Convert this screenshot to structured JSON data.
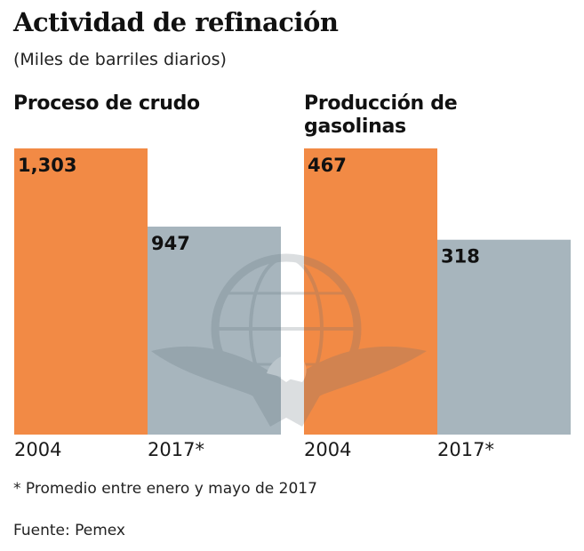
{
  "header": {
    "title": "Actividad de refinación",
    "subtitle": "(Miles de barriles diarios)"
  },
  "colors": {
    "orange": "#f28a45",
    "grey": "#a7b5bd",
    "watermark": "#7b8a92"
  },
  "chart_data": [
    {
      "type": "bar",
      "title": "Proceso de crudo",
      "categories": [
        "2004",
        "2017*"
      ],
      "values": [
        1303,
        947
      ],
      "value_labels": [
        "1,303",
        "947"
      ],
      "xlabel": "",
      "ylabel": "Miles de barriles diarios",
      "ylim": [
        0,
        1303
      ],
      "grid": false,
      "legend": "none"
    },
    {
      "type": "bar",
      "title": "Producción de gasolinas",
      "categories": [
        "2004",
        "2017*"
      ],
      "values": [
        467,
        318
      ],
      "value_labels": [
        "467",
        "318"
      ],
      "xlabel": "",
      "ylabel": "Miles de barriles diarios",
      "ylim": [
        0,
        467
      ],
      "grid": false,
      "legend": "none"
    }
  ],
  "footer": {
    "footnote": "* Promedio entre enero y mayo de 2017",
    "source": "Fuente: Pemex"
  },
  "watermark": {
    "icon": "pemex-eagle-globe-icon"
  }
}
